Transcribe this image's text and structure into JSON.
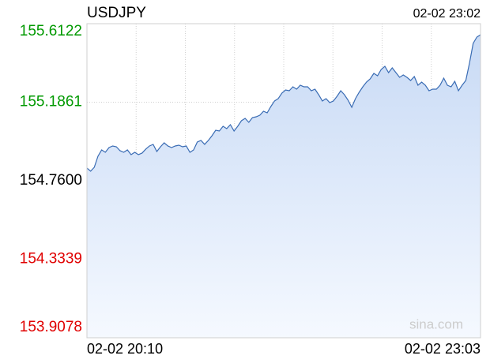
{
  "chart_data": {
    "type": "line",
    "title": "USDJPY",
    "timestamp": "02-02 23:02",
    "watermark": "sina.com",
    "categories": [
      "02-02 20:10",
      null,
      null,
      null,
      null,
      null,
      null,
      null,
      null,
      null,
      null,
      null,
      null,
      null,
      null,
      null,
      null,
      null,
      null,
      null,
      null,
      null,
      null,
      null,
      null,
      null,
      null,
      null,
      null,
      null,
      null,
      null,
      null,
      null,
      null,
      null,
      null,
      null,
      null,
      null,
      null,
      null,
      null,
      null,
      null,
      null,
      null,
      null,
      null,
      null,
      null,
      null,
      null,
      null,
      null,
      null,
      null,
      null,
      null,
      null,
      null,
      null,
      null,
      null,
      null,
      null,
      null,
      null,
      null,
      null,
      null,
      null,
      null,
      null,
      null,
      null,
      null,
      null,
      null,
      null,
      null,
      null,
      null,
      null,
      null,
      null,
      null,
      null,
      null,
      null,
      null,
      null,
      null,
      null,
      null,
      null,
      null,
      null,
      null,
      null,
      null,
      null,
      null,
      null,
      null,
      null,
      null,
      "02-02 23:03"
    ],
    "values": [
      154.8286,
      154.8115,
      154.8329,
      154.8928,
      154.9271,
      154.9142,
      154.9399,
      154.9485,
      154.9442,
      154.9228,
      154.9142,
      154.9271,
      154.9014,
      154.9142,
      154.9014,
      154.91,
      154.9314,
      154.9485,
      154.9571,
      154.9185,
      154.9442,
      154.9656,
      154.9485,
      154.9399,
      154.9485,
      154.9528,
      154.9442,
      154.9485,
      154.9142,
      154.9271,
      154.9699,
      154.9785,
      154.9571,
      154.9785,
      155.0042,
      155.0341,
      155.0298,
      155.0555,
      155.0427,
      155.0641,
      155.0298,
      155.0555,
      155.0855,
      155.0984,
      155.0769,
      155.1026,
      155.1069,
      155.1155,
      155.1369,
      155.1283,
      155.1626,
      155.1926,
      155.2054,
      155.2354,
      155.2525,
      155.2482,
      155.2696,
      155.2568,
      155.2782,
      155.2696,
      155.2696,
      155.2482,
      155.2568,
      155.2268,
      155.1926,
      155.2054,
      155.184,
      155.1926,
      155.2183,
      155.2482,
      155.2268,
      155.1968,
      155.1583,
      155.2054,
      155.2397,
      155.2696,
      155.2953,
      155.3125,
      155.3424,
      155.3296,
      155.3638,
      155.381,
      155.3467,
      155.3724,
      155.3467,
      155.321,
      155.3339,
      155.321,
      155.3039,
      155.3253,
      155.2782,
      155.2953,
      155.2782,
      155.2482,
      155.2568,
      155.2568,
      155.2782,
      155.3167,
      155.2782,
      155.2696,
      155.2996,
      155.2482,
      155.2782,
      155.3039,
      155.3981,
      155.5051,
      155.5394,
      155.5523
    ],
    "color": "#3a6cb4",
    "fill_top": "#c8daf5",
    "fill_bottom": "#f5f9ff",
    "ylim": [
      153.9078,
      155.6122
    ],
    "yticks": [
      {
        "value": 153.9078,
        "label": "153.9078"
      },
      {
        "value": 154.3339,
        "label": "154.3339"
      },
      {
        "value": 154.76,
        "label": "154.7600"
      },
      {
        "value": 155.1861,
        "label": "155.1861"
      },
      {
        "value": 155.6122,
        "label": "155.6122"
      }
    ],
    "baseline": 154.76,
    "up_color": "#009900",
    "down_color": "#e00000",
    "base_color": "#000000",
    "grid": true
  }
}
